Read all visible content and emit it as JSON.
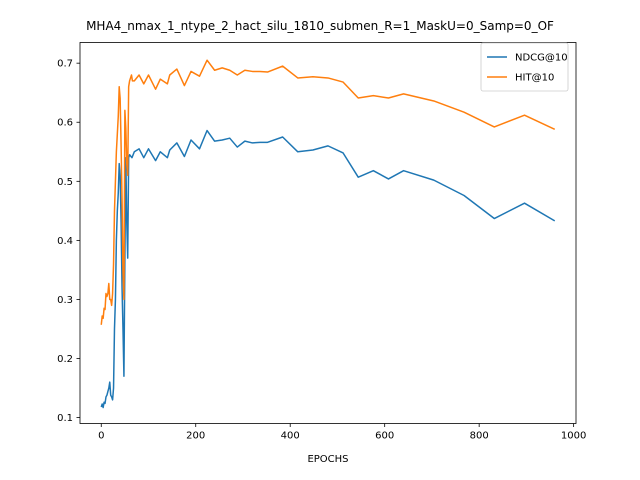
{
  "chart_data": {
    "type": "line",
    "title": "MHA4_nmax_1_ntype_2_hact_silu_1810_submen_R=1_MaskU=0_Samp=0_OF",
    "xlabel": "EPOCHS",
    "ylabel": "",
    "xlim": [
      -45,
      1005
    ],
    "ylim": [
      0.09,
      0.735
    ],
    "xticks": [
      0,
      200,
      400,
      600,
      800,
      1000
    ],
    "yticks": [
      0.1,
      0.2,
      0.3,
      0.4,
      0.5,
      0.6,
      0.7
    ],
    "legend_position": "upper-right",
    "grid": false,
    "series": [
      {
        "name": "NDCG@10",
        "color": "#1f77b4",
        "x": [
          0,
          2,
          4,
          6,
          8,
          10,
          12,
          14,
          16,
          18,
          20,
          22,
          24,
          26,
          28,
          30,
          32,
          34,
          36,
          38,
          40,
          42,
          44,
          46,
          48,
          50,
          52,
          54,
          56,
          58,
          60,
          65,
          70,
          80,
          90,
          100,
          115,
          125,
          140,
          145,
          160,
          176,
          190,
          208,
          224,
          240,
          256,
          272,
          288,
          304,
          320,
          336,
          352,
          384,
          416,
          448,
          480,
          512,
          544,
          576,
          608,
          640,
          704,
          768,
          832,
          896,
          960
        ],
        "y": [
          0.118,
          0.123,
          0.117,
          0.126,
          0.124,
          0.135,
          0.138,
          0.144,
          0.15,
          0.16,
          0.138,
          0.135,
          0.13,
          0.15,
          0.25,
          0.3,
          0.4,
          0.45,
          0.48,
          0.53,
          0.51,
          0.43,
          0.32,
          0.25,
          0.17,
          0.37,
          0.54,
          0.43,
          0.37,
          0.54,
          0.545,
          0.54,
          0.55,
          0.555,
          0.54,
          0.555,
          0.535,
          0.55,
          0.54,
          0.553,
          0.565,
          0.542,
          0.57,
          0.555,
          0.586,
          0.568,
          0.57,
          0.573,
          0.558,
          0.568,
          0.565,
          0.566,
          0.566,
          0.575,
          0.55,
          0.553,
          0.56,
          0.548,
          0.507,
          0.518,
          0.504,
          0.518,
          0.502,
          0.476,
          0.437,
          0.463,
          0.433
        ]
      },
      {
        "name": "HIT@10",
        "color": "#ff7f0e",
        "x": [
          0,
          2,
          4,
          6,
          8,
          10,
          12,
          14,
          16,
          18,
          20,
          22,
          24,
          26,
          28,
          30,
          32,
          34,
          36,
          38,
          40,
          42,
          44,
          46,
          48,
          50,
          52,
          54,
          56,
          58,
          60,
          62,
          64,
          66,
          70,
          80,
          90,
          100,
          115,
          125,
          140,
          145,
          160,
          176,
          190,
          208,
          224,
          240,
          256,
          272,
          288,
          304,
          320,
          336,
          352,
          384,
          416,
          448,
          480,
          512,
          544,
          576,
          608,
          640,
          704,
          768,
          832,
          896,
          960
        ],
        "y": [
          0.257,
          0.272,
          0.268,
          0.285,
          0.283,
          0.31,
          0.305,
          0.31,
          0.327,
          0.3,
          0.3,
          0.29,
          0.31,
          0.36,
          0.45,
          0.5,
          0.55,
          0.58,
          0.61,
          0.66,
          0.64,
          0.56,
          0.47,
          0.35,
          0.3,
          0.62,
          0.59,
          0.53,
          0.51,
          0.66,
          0.67,
          0.675,
          0.68,
          0.67,
          0.67,
          0.68,
          0.665,
          0.68,
          0.656,
          0.673,
          0.665,
          0.68,
          0.69,
          0.662,
          0.686,
          0.678,
          0.705,
          0.688,
          0.692,
          0.688,
          0.68,
          0.688,
          0.686,
          0.686,
          0.685,
          0.695,
          0.675,
          0.677,
          0.675,
          0.668,
          0.641,
          0.645,
          0.641,
          0.648,
          0.636,
          0.617,
          0.592,
          0.612,
          0.588
        ]
      }
    ]
  }
}
